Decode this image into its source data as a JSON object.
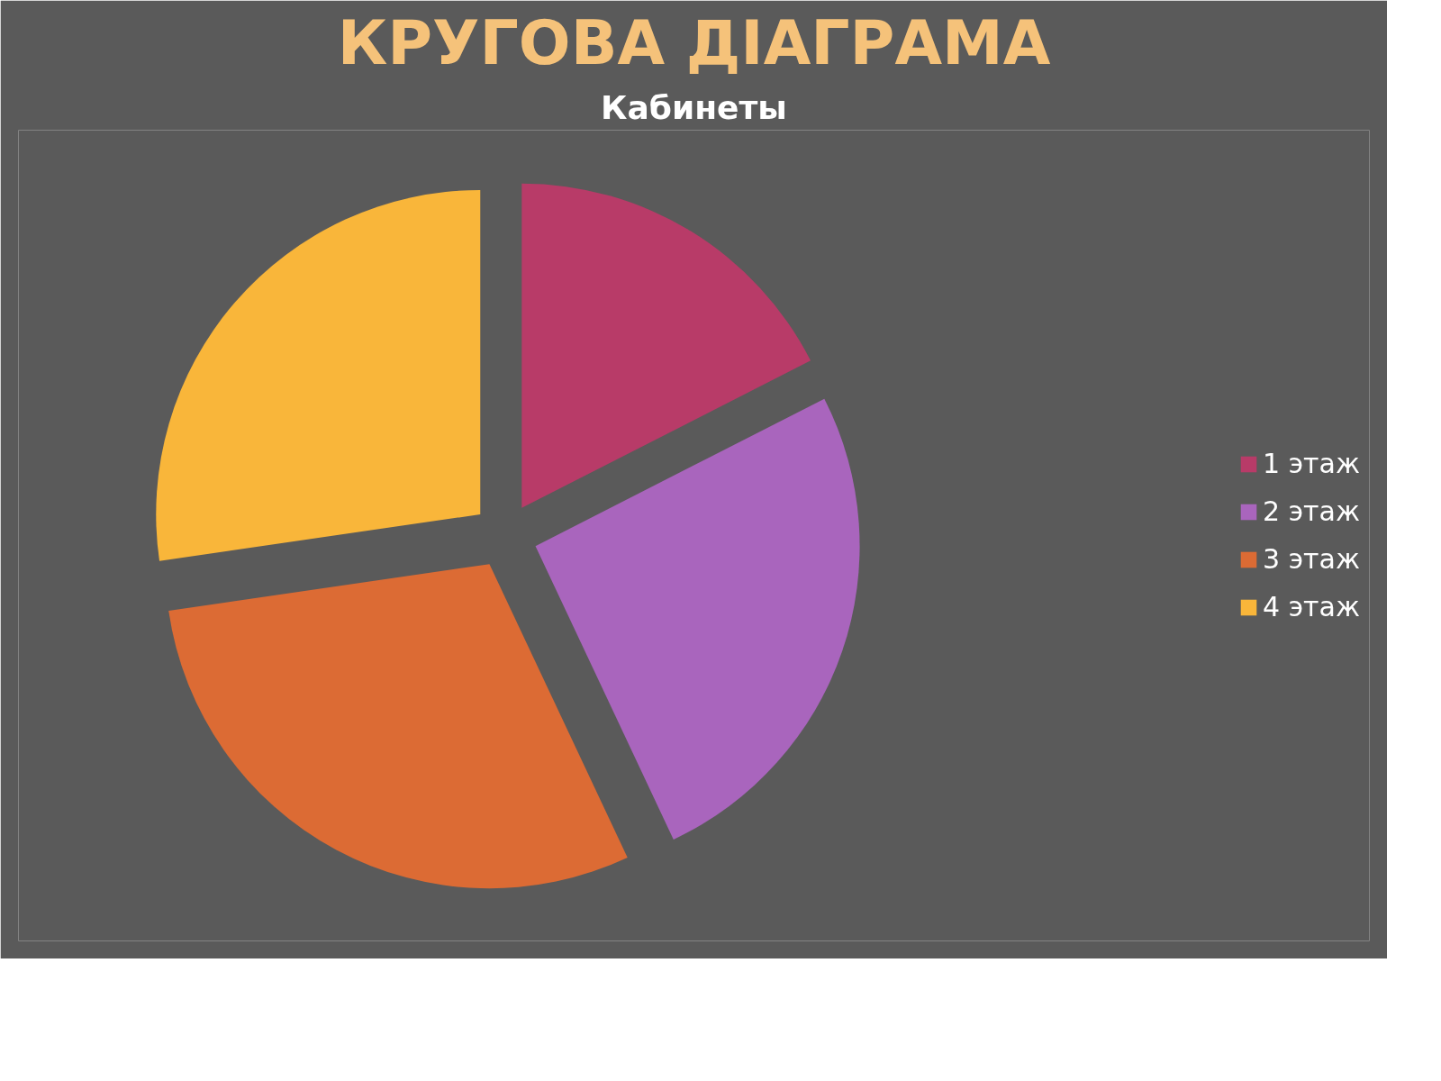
{
  "chart_data": {
    "type": "pie",
    "title": "КРУГОВА ДІАГРАМА",
    "subtitle": "Кабинеты",
    "categories": [
      "1 этаж",
      "2 этаж",
      "3 этаж",
      "4 этаж"
    ],
    "values": [
      17.5,
      25.5,
      29.7,
      27.3
    ],
    "colors": [
      "#b83b68",
      "#a965bd",
      "#dc6b34",
      "#f9b63a"
    ],
    "legend": "right"
  }
}
